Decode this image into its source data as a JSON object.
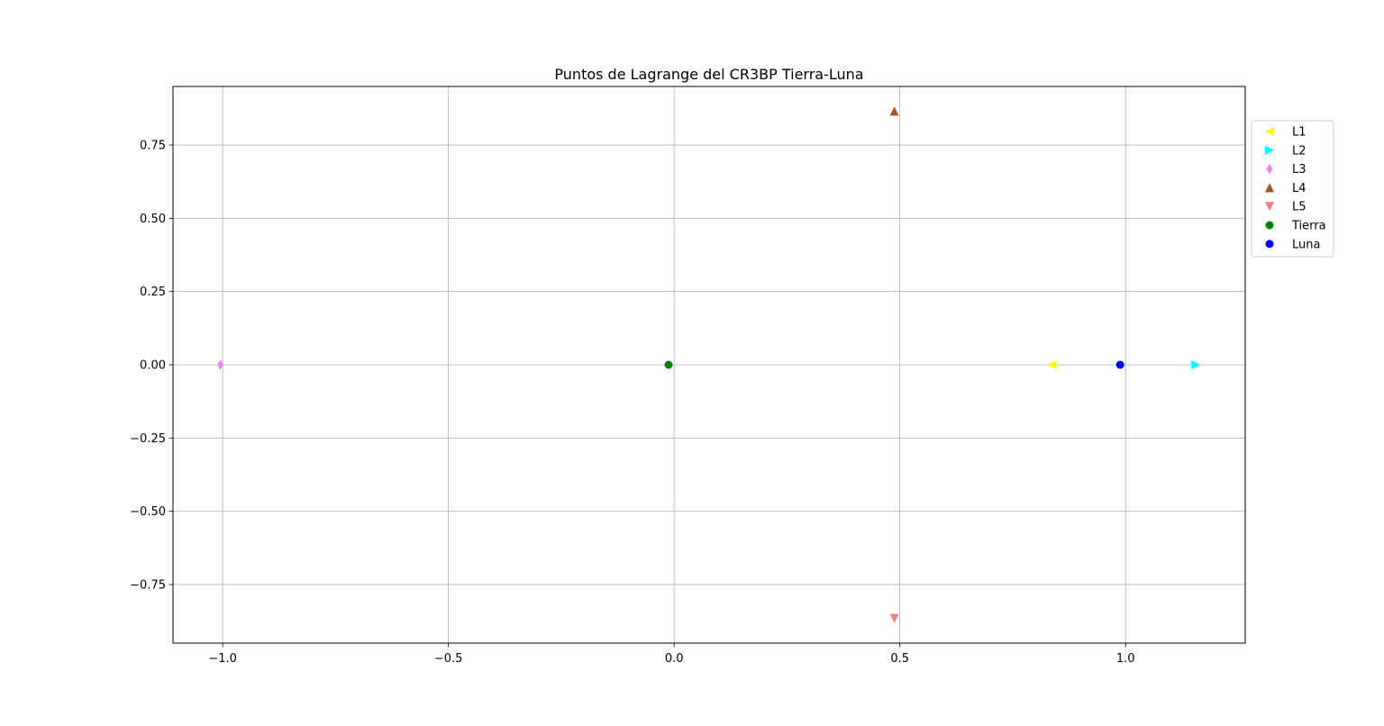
{
  "chart_data": {
    "type": "scatter",
    "title": "Puntos de Lagrange del CR3BP Tierra-Luna",
    "xlabel": "",
    "ylabel": "",
    "xlim": [
      -1.11,
      1.265
    ],
    "ylim": [
      -0.95,
      0.95
    ],
    "x_ticks": [
      -1.0,
      -0.5,
      0.0,
      0.5,
      1.0
    ],
    "x_tick_labels": [
      "−1.0",
      "−0.5",
      "0.0",
      "0.5",
      "1.0"
    ],
    "y_ticks": [
      0.75,
      0.5,
      0.25,
      0.0,
      -0.25,
      -0.5,
      -0.75
    ],
    "y_tick_labels": [
      "0.75",
      "0.50",
      "0.25",
      "0.00",
      "−0.25",
      "−0.50",
      "−0.75"
    ],
    "grid": true,
    "legend_placement": "outside-right-top",
    "series": [
      {
        "name": "L1",
        "marker": "triangle-left",
        "color": "#ffff00",
        "x": 0.8369,
        "y": 0.0
      },
      {
        "name": "L2",
        "marker": "triangle-right",
        "color": "#00ffff",
        "x": 1.1557,
        "y": 0.0
      },
      {
        "name": "L3",
        "marker": "thin-diamond",
        "color": "#ee82ee",
        "x": -1.0051,
        "y": 0.0
      },
      {
        "name": "L4",
        "marker": "triangle-up",
        "color": "#a0522d",
        "x": 0.4878,
        "y": 0.866
      },
      {
        "name": "L5",
        "marker": "triangle-down",
        "color": "#f08080",
        "x": 0.4878,
        "y": -0.866
      },
      {
        "name": "Tierra",
        "marker": "circle",
        "color": "#008000",
        "x": -0.0122,
        "y": 0.0
      },
      {
        "name": "Luna",
        "marker": "circle",
        "color": "#0000ff",
        "x": 0.9878,
        "y": 0.0
      }
    ]
  }
}
